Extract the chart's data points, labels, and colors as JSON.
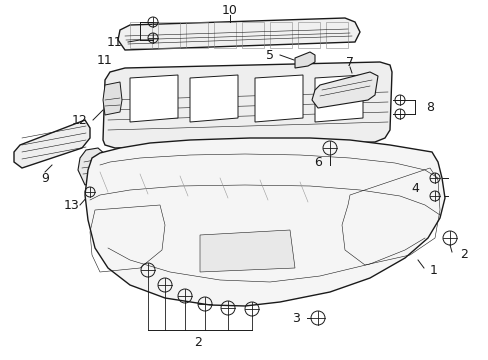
{
  "bg_color": "#ffffff",
  "line_color": "#1a1a1a",
  "fig_width": 4.89,
  "fig_height": 3.6,
  "dpi": 100,
  "label_fs": 9,
  "lw_main": 1.0,
  "lw_detail": 0.5,
  "lw_thin": 0.4
}
